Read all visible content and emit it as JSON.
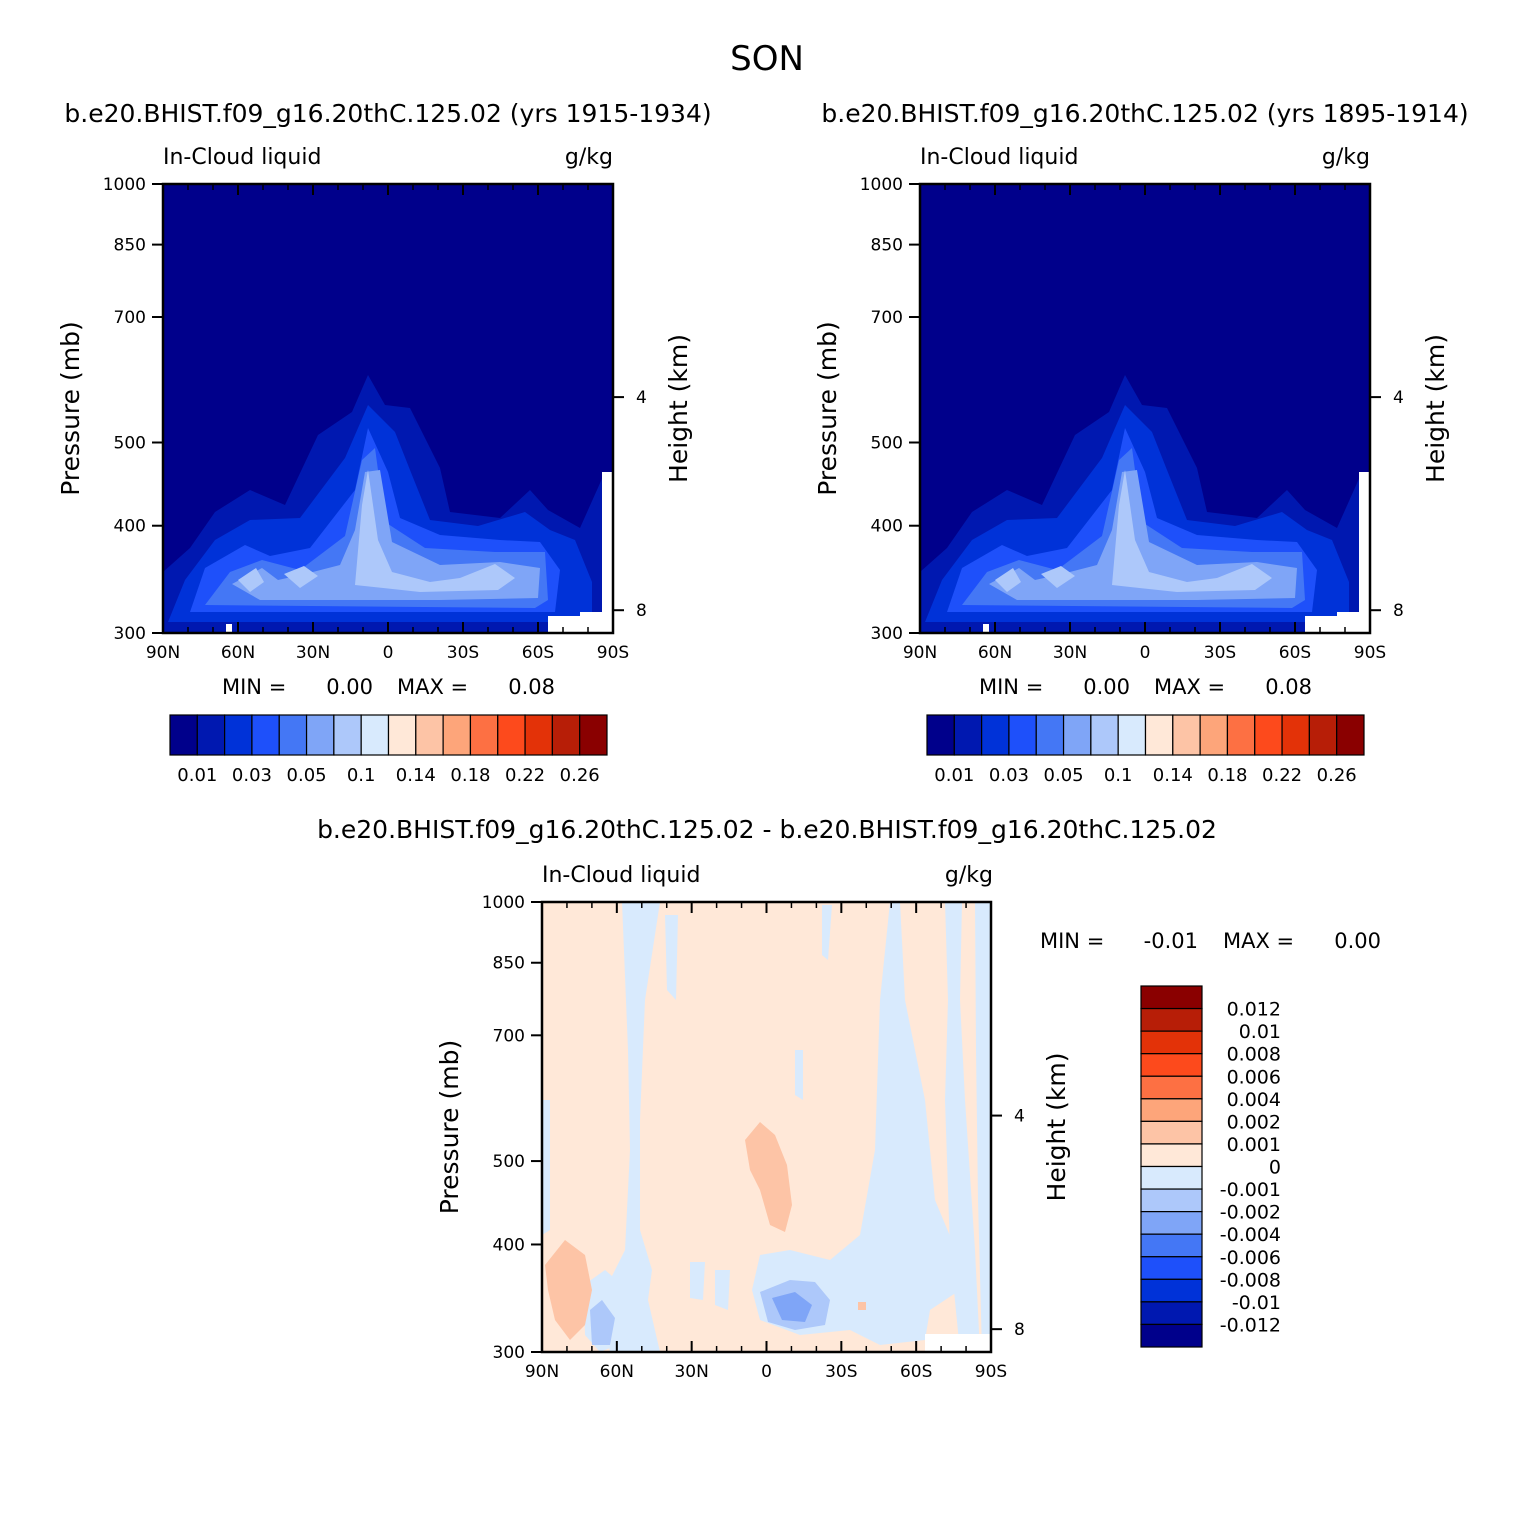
{
  "figure_title": "SON",
  "chart_data": [
    {
      "type": "heatmap",
      "title": "b.e20.BHIST.f09_g16.20thC.125.02 (yrs 1915-1934)",
      "variable": "In-Cloud liquid",
      "units": "g/kg",
      "ylabel": "Pressure (mb)",
      "ylabel_right": "Height (km)",
      "x_ticks": [
        "90N",
        "60N",
        "30N",
        "0",
        "30S",
        "60S",
        "90S"
      ],
      "y_ticks": [
        "300",
        "400",
        "500",
        "700",
        "850",
        "1000"
      ],
      "y_right_ticks": [
        "8",
        "4"
      ],
      "x_range": [
        90,
        -90
      ],
      "y_range": [
        1000,
        300
      ],
      "y_scale": "log",
      "stats": {
        "min_label": "MIN =",
        "min": "0.00",
        "max_label": "MAX =",
        "max": "0.08"
      },
      "colorbar": {
        "orientation": "horizontal",
        "labels": [
          "0.01",
          "0.03",
          "0.05",
          "0.1",
          "0.14",
          "0.18",
          "0.22",
          "0.26"
        ],
        "colors": [
          "#00008b",
          "#0018b0",
          "#0032d8",
          "#1e50fa",
          "#4477f5",
          "#7fa5f7",
          "#adc8fa",
          "#d8eafd",
          "#ffe8d8",
          "#fdc4a6",
          "#fda57a",
          "#fd7043",
          "#fd4a1c",
          "#e33208",
          "#b71e07",
          "#8a0000"
        ]
      }
    },
    {
      "type": "heatmap",
      "title": "b.e20.BHIST.f09_g16.20thC.125.02 (yrs 1895-1914)",
      "variable": "In-Cloud liquid",
      "units": "g/kg",
      "ylabel": "Pressure (mb)",
      "ylabel_right": "Height (km)",
      "x_ticks": [
        "90N",
        "60N",
        "30N",
        "0",
        "30S",
        "60S",
        "90S"
      ],
      "y_ticks": [
        "300",
        "400",
        "500",
        "700",
        "850",
        "1000"
      ],
      "y_right_ticks": [
        "8",
        "4"
      ],
      "x_range": [
        90,
        -90
      ],
      "y_range": [
        1000,
        300
      ],
      "y_scale": "log",
      "stats": {
        "min_label": "MIN =",
        "min": "0.00",
        "max_label": "MAX =",
        "max": "0.08"
      },
      "colorbar": {
        "orientation": "horizontal",
        "labels": [
          "0.01",
          "0.03",
          "0.05",
          "0.1",
          "0.14",
          "0.18",
          "0.22",
          "0.26"
        ],
        "colors": [
          "#00008b",
          "#0018b0",
          "#0032d8",
          "#1e50fa",
          "#4477f5",
          "#7fa5f7",
          "#adc8fa",
          "#d8eafd",
          "#ffe8d8",
          "#fdc4a6",
          "#fda57a",
          "#fd7043",
          "#fd4a1c",
          "#e33208",
          "#b71e07",
          "#8a0000"
        ]
      }
    },
    {
      "type": "heatmap",
      "title": "b.e20.BHIST.f09_g16.20thC.125.02 - b.e20.BHIST.f09_g16.20thC.125.02",
      "variable": "In-Cloud liquid",
      "units": "g/kg",
      "ylabel": "Pressure (mb)",
      "ylabel_right": "Height (km)",
      "x_ticks": [
        "90N",
        "60N",
        "30N",
        "0",
        "30S",
        "60S",
        "90S"
      ],
      "y_ticks": [
        "300",
        "400",
        "500",
        "700",
        "850",
        "1000"
      ],
      "y_right_ticks": [
        "8",
        "4"
      ],
      "x_range": [
        90,
        -90
      ],
      "y_range": [
        1000,
        300
      ],
      "y_scale": "log",
      "stats": {
        "min_label": "MIN =",
        "min": "-0.01",
        "max_label": "MAX =",
        "max": "0.00"
      },
      "colorbar": {
        "orientation": "vertical",
        "labels": [
          "0.012",
          "0.01",
          "0.008",
          "0.006",
          "0.004",
          "0.002",
          "0.001",
          "0",
          "-0.001",
          "-0.002",
          "-0.004",
          "-0.006",
          "-0.008",
          "-0.01",
          "-0.012"
        ],
        "colors": [
          "#8a0000",
          "#b71e07",
          "#e33208",
          "#fd4a1c",
          "#fd7043",
          "#fda57a",
          "#fdc4a6",
          "#ffe8d8",
          "#d8eafd",
          "#adc8fa",
          "#7fa5f7",
          "#4477f5",
          "#1e50fa",
          "#0032d8",
          "#0018b0",
          "#00008b"
        ]
      }
    }
  ]
}
